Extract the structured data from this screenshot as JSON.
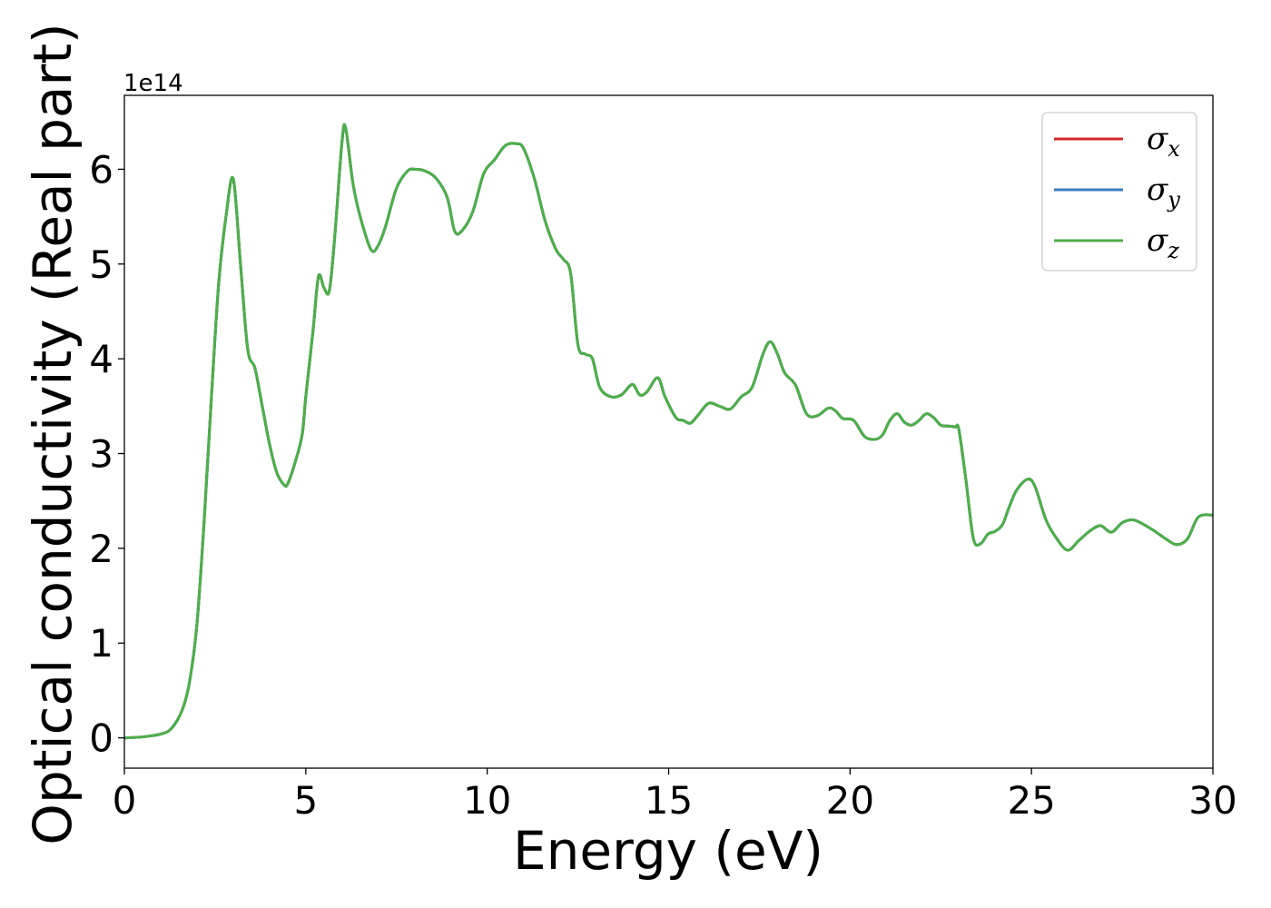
{
  "chart_data": {
    "type": "line",
    "title": "",
    "xlabel": "Energy (eV)",
    "ylabel": "Optical conductivity (Real part)",
    "y_offset_label": "1e14",
    "y_scale": 100000000000000.0,
    "xlim": [
      0,
      30
    ],
    "ylim": [
      -0.32,
      6.78
    ],
    "x_ticks": [
      0,
      5,
      10,
      15,
      20,
      25,
      30
    ],
    "x_tick_labels": [
      "0",
      "5",
      "10",
      "15",
      "20",
      "25",
      "30"
    ],
    "y_ticks": [
      0,
      1,
      2,
      3,
      4,
      5,
      6
    ],
    "y_tick_labels": [
      "0",
      "1",
      "2",
      "3",
      "4",
      "5",
      "6"
    ],
    "grid": false,
    "legend_position": "top-right",
    "series": [
      {
        "name_base": "σ",
        "name_sub": "x",
        "color": "#d62728"
      },
      {
        "name_base": "σ",
        "name_sub": "y",
        "color": "#3a7ebf"
      },
      {
        "name_base": "σ",
        "name_sub": "z",
        "color": "#4daf4a"
      }
    ],
    "x": [
      0,
      0.5,
      1.0,
      1.3,
      1.6,
      1.8,
      2.0,
      2.2,
      2.4,
      2.6,
      2.8,
      3.0,
      3.2,
      3.4,
      3.6,
      3.8,
      4.0,
      4.2,
      4.4,
      4.5,
      4.7,
      4.9,
      5.0,
      5.2,
      5.35,
      5.5,
      5.65,
      5.8,
      6.0,
      6.1,
      6.3,
      6.5,
      6.8,
      7.0,
      7.2,
      7.5,
      7.8,
      8.0,
      8.3,
      8.6,
      8.9,
      9.1,
      9.3,
      9.6,
      9.9,
      10.2,
      10.5,
      10.8,
      11.0,
      11.3,
      11.6,
      11.9,
      12.1,
      12.3,
      12.5,
      12.7,
      12.9,
      13.1,
      13.4,
      13.7,
      14.0,
      14.2,
      14.4,
      14.7,
      14.9,
      15.2,
      15.4,
      15.6,
      15.8,
      16.1,
      16.4,
      16.7,
      17.0,
      17.3,
      17.6,
      17.8,
      18.0,
      18.2,
      18.5,
      18.8,
      19.1,
      19.4,
      19.6,
      19.8,
      20.1,
      20.4,
      20.7,
      20.9,
      21.1,
      21.3,
      21.5,
      21.7,
      21.9,
      22.1,
      22.3,
      22.5,
      22.7,
      22.9,
      23.0,
      23.2,
      23.4,
      23.6,
      23.8,
      24.0,
      24.2,
      24.4,
      24.6,
      24.9,
      25.1,
      25.4,
      25.7,
      26.0,
      26.3,
      26.6,
      26.9,
      27.2,
      27.5,
      27.8,
      28.1,
      28.4,
      28.7,
      29.0,
      29.3,
      29.6,
      30.0
    ],
    "y": [
      0.0,
      0.01,
      0.04,
      0.1,
      0.3,
      0.6,
      1.2,
      2.3,
      3.6,
      4.8,
      5.5,
      5.9,
      5.0,
      4.1,
      3.9,
      3.5,
      3.1,
      2.8,
      2.67,
      2.68,
      2.9,
      3.2,
      3.6,
      4.3,
      4.87,
      4.75,
      4.72,
      5.3,
      6.3,
      6.43,
      5.85,
      5.5,
      5.15,
      5.2,
      5.4,
      5.8,
      5.98,
      6.0,
      5.98,
      5.9,
      5.7,
      5.35,
      5.35,
      5.55,
      5.95,
      6.1,
      6.25,
      6.27,
      6.22,
      5.9,
      5.45,
      5.15,
      5.05,
      4.9,
      4.15,
      4.05,
      4.0,
      3.7,
      3.6,
      3.62,
      3.73,
      3.62,
      3.65,
      3.8,
      3.6,
      3.38,
      3.35,
      3.32,
      3.4,
      3.53,
      3.5,
      3.47,
      3.6,
      3.7,
      4.05,
      4.18,
      4.05,
      3.85,
      3.72,
      3.42,
      3.4,
      3.48,
      3.45,
      3.37,
      3.35,
      3.18,
      3.15,
      3.2,
      3.35,
      3.42,
      3.33,
      3.3,
      3.35,
      3.42,
      3.38,
      3.3,
      3.29,
      3.28,
      3.25,
      2.7,
      2.1,
      2.05,
      2.15,
      2.18,
      2.25,
      2.45,
      2.62,
      2.73,
      2.65,
      2.3,
      2.1,
      1.98,
      2.08,
      2.18,
      2.24,
      2.17,
      2.27,
      2.3,
      2.25,
      2.18,
      2.1,
      2.04,
      2.1,
      2.33,
      2.35
    ]
  }
}
